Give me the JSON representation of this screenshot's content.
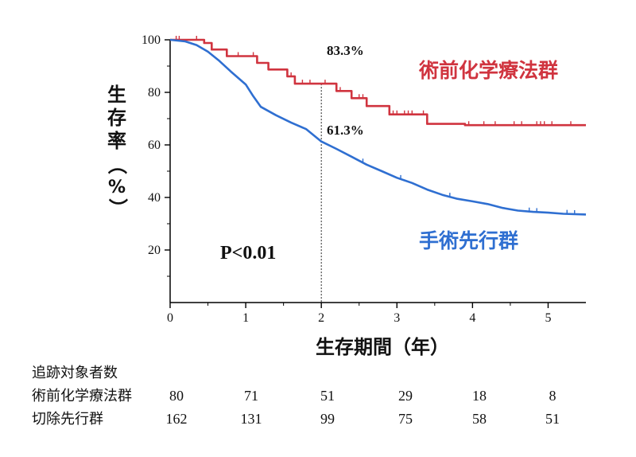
{
  "chart_data": {
    "type": "line",
    "title": "",
    "xlabel": "生存期間（年）",
    "ylabel": "生存率（%）",
    "xlim": [
      0,
      5.5
    ],
    "ylim": [
      0,
      100
    ],
    "x_ticks": [
      "0",
      "1",
      "2",
      "3",
      "4",
      "5"
    ],
    "y_ticks": [
      "20",
      "40",
      "60",
      "80",
      "100"
    ],
    "series": [
      {
        "name": "術前化学療法群",
        "color": "#d0343f",
        "x": [
          0,
          0.45,
          0.55,
          0.75,
          1.15,
          1.3,
          1.55,
          1.65,
          2.2,
          2.4,
          2.6,
          2.9,
          3.4,
          3.9,
          5.5
        ],
        "y": [
          100,
          98.8,
          96.3,
          93.8,
          91.2,
          88.7,
          86.1,
          83.3,
          80.5,
          77.8,
          74.8,
          71.6,
          68,
          67.5,
          67.5
        ],
        "censor_x": [
          0.08,
          0.12,
          0.35,
          0.9,
          1.1,
          1.6,
          1.75,
          1.85,
          2.05,
          2.25,
          2.5,
          2.55,
          2.95,
          3.0,
          3.1,
          3.15,
          3.2,
          3.35,
          3.95,
          4.15,
          4.3,
          4.55,
          4.65,
          4.85,
          4.9,
          4.95,
          5.05,
          5.3
        ]
      },
      {
        "name": "手術先行群",
        "color": "#2f6fd1",
        "x": [
          0,
          0.2,
          0.35,
          0.5,
          0.65,
          0.8,
          1.0,
          1.1,
          1.2,
          1.4,
          1.6,
          1.8,
          2.0,
          2.2,
          2.4,
          2.6,
          2.8,
          3.0,
          3.2,
          3.4,
          3.6,
          3.8,
          4.0,
          4.2,
          4.4,
          4.6,
          4.8,
          5.0,
          5.2,
          5.5
        ],
        "y": [
          100,
          99.4,
          98,
          95.5,
          92,
          88,
          83,
          78.5,
          74.5,
          71.3,
          68.5,
          66,
          61.3,
          58.5,
          55.5,
          52.5,
          50,
          47.5,
          45.5,
          43,
          41,
          39.5,
          38.5,
          37.5,
          36,
          35,
          34.5,
          34.2,
          33.8,
          33.5
        ],
        "censor_x": [
          2.55,
          3.05,
          3.7,
          4.75,
          4.85,
          5.25,
          5.35
        ]
      }
    ],
    "annotations": [
      {
        "text": "83.3%",
        "x": 2.0,
        "y": 83.3
      },
      {
        "text": "61.3%",
        "x": 2.0,
        "y": 61.3
      },
      {
        "text": "P<0.01"
      }
    ],
    "risk_table": {
      "title": "追跡対象者数",
      "time_points": [
        0,
        1,
        2,
        3,
        4,
        5
      ],
      "rows": [
        {
          "label": "術前化学療法群",
          "values": [
            80,
            71,
            51,
            29,
            18,
            8
          ]
        },
        {
          "label": "切除先行群",
          "values": [
            162,
            131,
            99,
            75,
            58,
            51
          ]
        }
      ]
    }
  }
}
